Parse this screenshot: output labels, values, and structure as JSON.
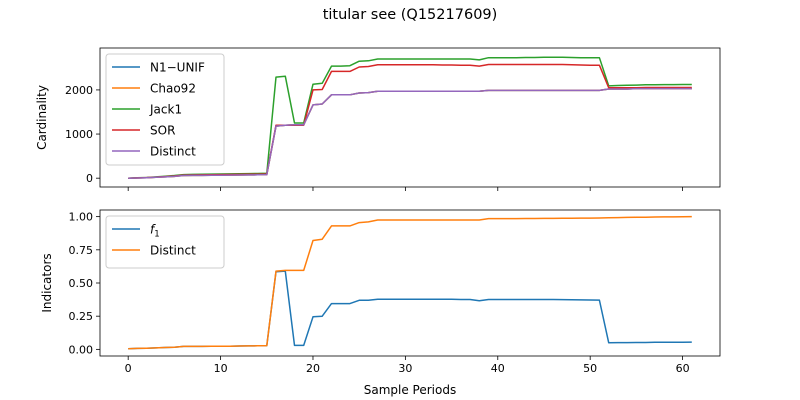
{
  "title": "titular see (Q15217609)",
  "chart_data": [
    {
      "type": "line",
      "ylabel": "Cardinality",
      "xlabel": "",
      "x": [
        0,
        1,
        2,
        3,
        4,
        5,
        6,
        7,
        8,
        9,
        10,
        11,
        12,
        13,
        14,
        15,
        16,
        17,
        18,
        19,
        20,
        21,
        22,
        23,
        24,
        25,
        26,
        27,
        28,
        29,
        30,
        31,
        32,
        33,
        34,
        35,
        36,
        37,
        38,
        39,
        40,
        41,
        42,
        43,
        44,
        45,
        46,
        47,
        48,
        49,
        50,
        51,
        52,
        53,
        54,
        55,
        56,
        57,
        58,
        59,
        60,
        61
      ],
      "xlim": [
        -3.05,
        64.05
      ],
      "ylim": [
        -200,
        2950
      ],
      "xticks": [
        0,
        10,
        20,
        30,
        40,
        50,
        60
      ],
      "yticks": [
        0,
        1000,
        2000
      ],
      "legend_position": "upper left",
      "grid": false,
      "series": [
        {
          "name": "N1−UNIF",
          "color": "#1f77b4",
          "values": [
            0,
            5,
            10,
            20,
            30,
            40,
            60,
            62,
            64,
            66,
            68,
            70,
            72,
            74,
            76,
            80,
            1180,
            1200,
            1210,
            1210,
            1660,
            1680,
            1890,
            1890,
            1890,
            1930,
            1940,
            1970,
            1970,
            1970,
            1970,
            1970,
            1970,
            1970,
            1970,
            1970,
            1970,
            1970,
            1970,
            1990,
            1990,
            1990,
            1990,
            1990,
            1990,
            1990,
            1990,
            1990,
            1990,
            1990,
            1990,
            1990,
            2020,
            2020,
            2020,
            2030,
            2030,
            2030,
            2030,
            2030,
            2030,
            2030
          ]
        },
        {
          "name": "Chao92",
          "color": "#ff7f0e",
          "values": [
            0,
            5,
            10,
            20,
            30,
            40,
            60,
            62,
            64,
            66,
            68,
            70,
            72,
            74,
            76,
            80,
            1180,
            1200,
            1210,
            1210,
            1660,
            1680,
            1890,
            1890,
            1890,
            1930,
            1940,
            1970,
            1970,
            1970,
            1970,
            1970,
            1970,
            1970,
            1970,
            1970,
            1970,
            1970,
            1970,
            1990,
            1990,
            1990,
            1990,
            1990,
            1990,
            1990,
            1990,
            1990,
            1990,
            1990,
            1990,
            1990,
            2020,
            2020,
            2020,
            2030,
            2030,
            2030,
            2030,
            2030,
            2030,
            2030
          ]
        },
        {
          "name": "Jack1",
          "color": "#2ca02c",
          "values": [
            0,
            8,
            15,
            30,
            45,
            60,
            80,
            85,
            88,
            92,
            95,
            98,
            100,
            103,
            106,
            110,
            2290,
            2310,
            1250,
            1250,
            2130,
            2150,
            2540,
            2540,
            2550,
            2650,
            2660,
            2700,
            2700,
            2700,
            2700,
            2700,
            2700,
            2700,
            2700,
            2700,
            2700,
            2700,
            2680,
            2730,
            2730,
            2730,
            2730,
            2735,
            2735,
            2740,
            2740,
            2740,
            2735,
            2730,
            2730,
            2730,
            2090,
            2100,
            2105,
            2110,
            2115,
            2118,
            2120,
            2120,
            2122,
            2122
          ]
        },
        {
          "name": "SOR",
          "color": "#d62728",
          "values": [
            0,
            6,
            12,
            25,
            35,
            50,
            70,
            72,
            75,
            78,
            80,
            83,
            85,
            88,
            90,
            95,
            1200,
            1200,
            1200,
            1200,
            2000,
            2010,
            2420,
            2420,
            2420,
            2520,
            2530,
            2570,
            2570,
            2570,
            2570,
            2570,
            2570,
            2570,
            2565,
            2565,
            2560,
            2560,
            2540,
            2575,
            2575,
            2575,
            2575,
            2575,
            2575,
            2575,
            2575,
            2575,
            2570,
            2565,
            2560,
            2560,
            2050,
            2050,
            2050,
            2050,
            2055,
            2055,
            2055,
            2055,
            2055,
            2055
          ]
        },
        {
          "name": "Distinct",
          "color": "#9467bd",
          "values": [
            0,
            5,
            10,
            20,
            30,
            40,
            60,
            62,
            64,
            66,
            68,
            70,
            72,
            74,
            76,
            80,
            1180,
            1200,
            1210,
            1210,
            1660,
            1680,
            1890,
            1890,
            1890,
            1930,
            1940,
            1970,
            1970,
            1970,
            1970,
            1970,
            1970,
            1970,
            1970,
            1970,
            1970,
            1970,
            1970,
            1990,
            1990,
            1990,
            1990,
            1990,
            1990,
            1990,
            1990,
            1990,
            1990,
            1990,
            1990,
            1990,
            2020,
            2020,
            2020,
            2030,
            2030,
            2030,
            2030,
            2030,
            2030,
            2030
          ]
        }
      ]
    },
    {
      "type": "line",
      "ylabel": "Indicators",
      "xlabel": "Sample Periods",
      "x": [
        0,
        1,
        2,
        3,
        4,
        5,
        6,
        7,
        8,
        9,
        10,
        11,
        12,
        13,
        14,
        15,
        16,
        17,
        18,
        19,
        20,
        21,
        22,
        23,
        24,
        25,
        26,
        27,
        28,
        29,
        30,
        31,
        32,
        33,
        34,
        35,
        36,
        37,
        38,
        39,
        40,
        41,
        42,
        43,
        44,
        45,
        46,
        47,
        48,
        49,
        50,
        51,
        52,
        53,
        54,
        55,
        56,
        57,
        58,
        59,
        60,
        61
      ],
      "xlim": [
        -3.05,
        64.05
      ],
      "ylim": [
        -0.05,
        1.05
      ],
      "xticks": [
        0,
        10,
        20,
        30,
        40,
        50,
        60
      ],
      "yticks": [
        0.0,
        0.25,
        0.5,
        0.75,
        1.0
      ],
      "xtick_labels": [
        "0",
        "10",
        "20",
        "30",
        "40",
        "50",
        "60"
      ],
      "ytick_labels": [
        "0.00",
        "0.25",
        "0.50",
        "0.75",
        "1.00"
      ],
      "legend_position": "upper left",
      "grid": false,
      "series": [
        {
          "name": "f1",
          "name_base": "f",
          "name_sub": "1",
          "color": "#1f77b4",
          "values": [
            0.005,
            0.007,
            0.009,
            0.011,
            0.014,
            0.016,
            0.022,
            0.022,
            0.022,
            0.023,
            0.024,
            0.024,
            0.025,
            0.026,
            0.027,
            0.028,
            0.585,
            0.59,
            0.03,
            0.03,
            0.245,
            0.25,
            0.345,
            0.345,
            0.345,
            0.37,
            0.37,
            0.378,
            0.378,
            0.378,
            0.378,
            0.378,
            0.378,
            0.378,
            0.377,
            0.377,
            0.376,
            0.376,
            0.366,
            0.376,
            0.376,
            0.376,
            0.376,
            0.376,
            0.376,
            0.376,
            0.376,
            0.375,
            0.374,
            0.373,
            0.372,
            0.371,
            0.05,
            0.051,
            0.051,
            0.052,
            0.052,
            0.053,
            0.053,
            0.054,
            0.054,
            0.055
          ]
        },
        {
          "name": "Distinct",
          "color": "#ff7f0e",
          "values": [
            0.005,
            0.007,
            0.009,
            0.011,
            0.014,
            0.016,
            0.022,
            0.022,
            0.022,
            0.023,
            0.024,
            0.024,
            0.025,
            0.026,
            0.027,
            0.028,
            0.59,
            0.595,
            0.595,
            0.595,
            0.82,
            0.83,
            0.93,
            0.93,
            0.93,
            0.955,
            0.96,
            0.975,
            0.975,
            0.975,
            0.975,
            0.975,
            0.975,
            0.975,
            0.975,
            0.975,
            0.975,
            0.975,
            0.975,
            0.985,
            0.985,
            0.985,
            0.985,
            0.986,
            0.986,
            0.987,
            0.987,
            0.988,
            0.988,
            0.989,
            0.989,
            0.99,
            0.992,
            0.993,
            0.994,
            0.995,
            0.996,
            0.997,
            0.998,
            0.998,
            0.999,
            1.0
          ]
        }
      ]
    }
  ]
}
